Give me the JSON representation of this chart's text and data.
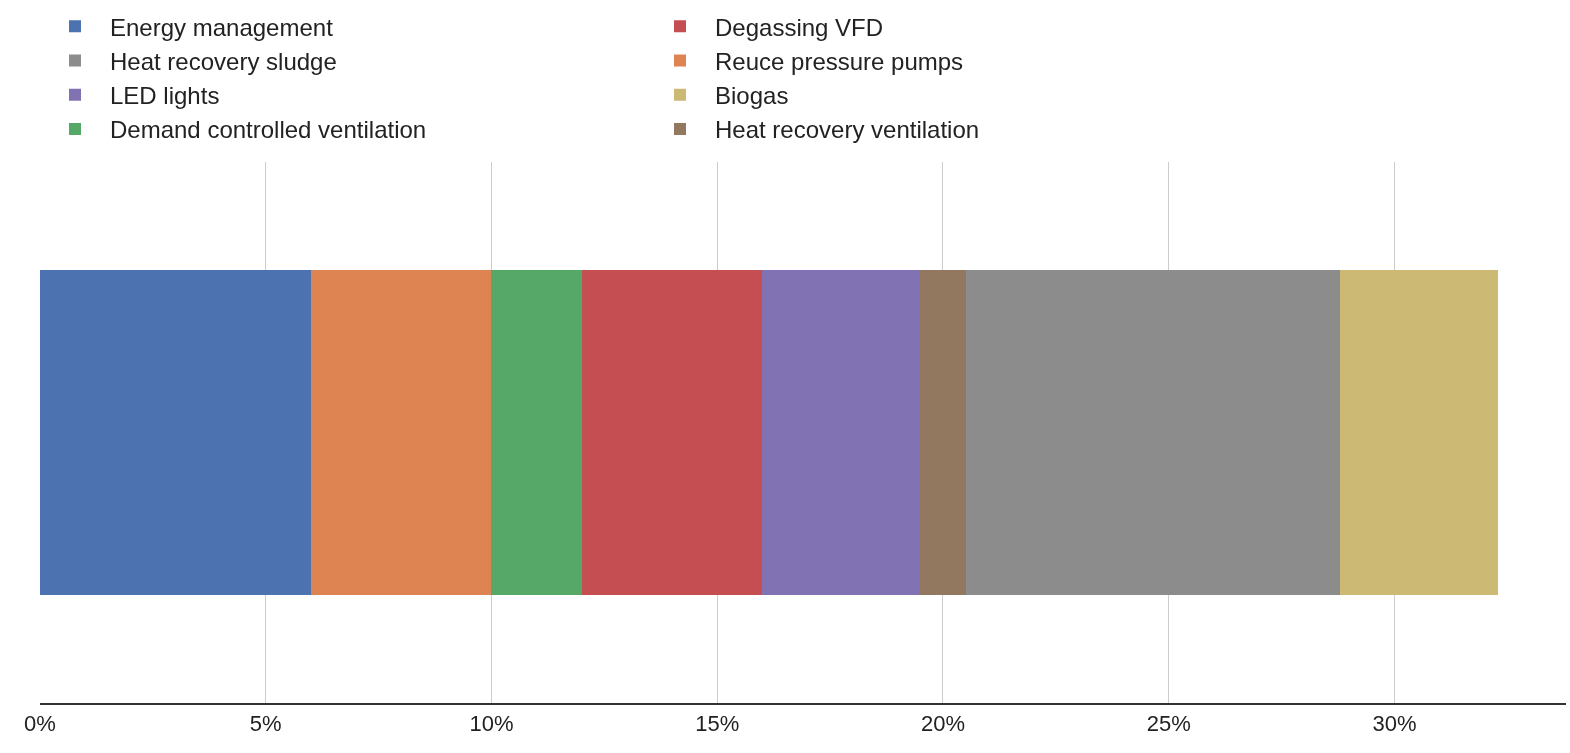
{
  "chart_data": {
    "type": "bar",
    "orientation": "horizontal",
    "stacked": true,
    "categories": [
      null
    ],
    "series": [
      {
        "name": "Energy management",
        "color": "#4c72b0",
        "values": [
          6
        ]
      },
      {
        "name": "Reuce pressure pumps",
        "color": "#dd8452",
        "values": [
          4
        ]
      },
      {
        "name": "Demand controlled ventilation",
        "color": "#55a868",
        "values": [
          2
        ]
      },
      {
        "name": "Degassing VFD",
        "color": "#c44e52",
        "values": [
          4
        ]
      },
      {
        "name": "LED lights",
        "color": "#8172b3",
        "values": [
          3.5
        ]
      },
      {
        "name": "Heat recovery ventilation",
        "color": "#937860",
        "values": [
          1
        ]
      },
      {
        "name": "Heat recovery sludge",
        "color": "#8c8c8c",
        "values": [
          8.3
        ]
      },
      {
        "name": "Biogas",
        "color": "#ccb974",
        "values": [
          3.5
        ]
      }
    ],
    "xlim": [
      0,
      33.8
    ],
    "xticks": [
      {
        "value": 0,
        "label": "0%"
      },
      {
        "value": 5,
        "label": "5%"
      },
      {
        "value": 10,
        "label": "10%"
      },
      {
        "value": 15,
        "label": "15%"
      },
      {
        "value": 20,
        "label": "20%"
      },
      {
        "value": 25,
        "label": "25%"
      },
      {
        "value": 30,
        "label": "30%"
      }
    ],
    "grid": "x",
    "legend": "top"
  }
}
